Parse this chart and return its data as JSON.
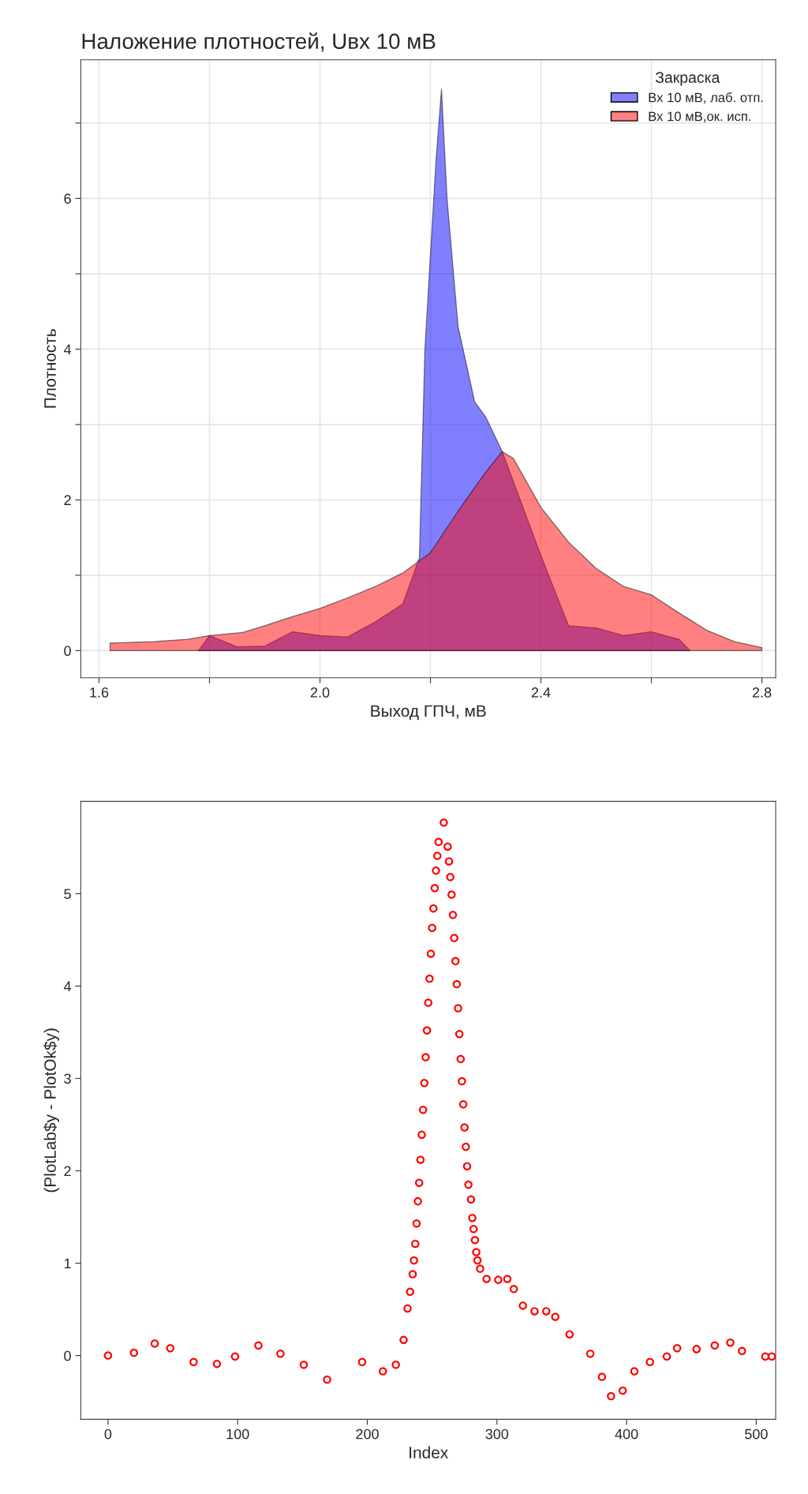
{
  "chart_data": [
    {
      "type": "area",
      "title": "Наложение плотностей, Uвх 10 мВ",
      "xlabel": "Выход ГПЧ, мВ",
      "ylabel": "Плотность",
      "legend_title": "Закраска",
      "legend": "top right",
      "grid": true,
      "xlim": [
        1.567,
        2.825
      ],
      "ylim": [
        -0.36,
        7.84
      ],
      "xticks": [
        1.6,
        {
          "value": 1.8,
          "label": null
        },
        {
          "value": 2.0,
          "label": "2.0"
        },
        {
          "value": 2.2,
          "label": null
        },
        2.4,
        {
          "value": 2.6,
          "label": null
        },
        2.8
      ],
      "yticks": [
        0,
        {
          "value": 1,
          "label": null
        },
        2,
        {
          "value": 3,
          "label": null
        },
        4,
        {
          "value": 5,
          "label": null
        },
        6,
        {
          "value": 7,
          "label": null
        }
      ],
      "series": [
        {
          "name": "Вх 10 мВ, лаб. отп.",
          "color": "#8080ff",
          "x": [
            1.78,
            1.8,
            1.85,
            1.9,
            1.95,
            2.0,
            2.05,
            2.1,
            2.15,
            2.18,
            2.19,
            2.21,
            2.22,
            2.23,
            2.25,
            2.28,
            2.3,
            2.33,
            2.4,
            2.45,
            2.5,
            2.55,
            2.6,
            2.65,
            2.67
          ],
          "values": [
            0,
            0.2,
            0.05,
            0.06,
            0.25,
            0.2,
            0.18,
            0.38,
            0.62,
            1.23,
            4.0,
            6.5,
            7.45,
            6.0,
            4.3,
            3.3,
            3.1,
            2.64,
            1.26,
            0.33,
            0.3,
            0.2,
            0.25,
            0.15,
            0
          ]
        },
        {
          "name": "Вх 10 мВ,ок. исп.",
          "color": "#ff8080",
          "x": [
            1.62,
            1.7,
            1.76,
            1.8,
            1.86,
            1.9,
            1.95,
            2.0,
            2.05,
            2.1,
            2.15,
            2.2,
            2.25,
            2.3,
            2.33,
            2.35,
            2.4,
            2.45,
            2.5,
            2.55,
            2.6,
            2.65,
            2.7,
            2.75,
            2.8
          ],
          "values": [
            0.1,
            0.12,
            0.15,
            0.2,
            0.24,
            0.33,
            0.45,
            0.56,
            0.7,
            0.85,
            1.03,
            1.3,
            1.85,
            2.37,
            2.64,
            2.55,
            1.9,
            1.44,
            1.09,
            0.85,
            0.74,
            0.5,
            0.27,
            0.12,
            0.04
          ]
        }
      ]
    },
    {
      "type": "scatter",
      "xlabel": "Index",
      "ylabel": "(PlotLab$y - PlotOk$y)",
      "marker": "circle",
      "xlim": [
        -21,
        515
      ],
      "ylim": [
        -0.69,
        6.0
      ],
      "xticks": [
        0,
        100,
        200,
        300,
        400,
        500
      ],
      "yticks": [
        0,
        1,
        2,
        3,
        4,
        5
      ],
      "series": [
        {
          "color": "#ff0000",
          "x": [
            0,
            20,
            36,
            48,
            66,
            84,
            98,
            116,
            133,
            151,
            169,
            196,
            212,
            222,
            228,
            231,
            233,
            235,
            236,
            237,
            238,
            239,
            240,
            241,
            242,
            243,
            244,
            245,
            246,
            247,
            248,
            249,
            250,
            251,
            252,
            253,
            254,
            255,
            259,
            262,
            263,
            264,
            265,
            266,
            267,
            268,
            269,
            270,
            271,
            272,
            273,
            274,
            275,
            276,
            277,
            278,
            280,
            281,
            282,
            283,
            284,
            285,
            287,
            292,
            301,
            308,
            313,
            320,
            329,
            338,
            345,
            356,
            372,
            381,
            388,
            397,
            406,
            418,
            431,
            439,
            454,
            468,
            480,
            489,
            507,
            512
          ],
          "values": [
            0,
            0.03,
            0.13,
            0.08,
            -0.07,
            -0.09,
            -0.01,
            0.11,
            0.02,
            -0.1,
            -0.26,
            -0.07,
            -0.17,
            -0.1,
            0.17,
            0.51,
            0.69,
            0.88,
            1.03,
            1.21,
            1.43,
            1.67,
            1.87,
            2.12,
            2.39,
            2.66,
            2.95,
            3.23,
            3.52,
            3.82,
            4.08,
            4.35,
            4.63,
            4.84,
            5.06,
            5.25,
            5.41,
            5.56,
            5.77,
            5.51,
            5.35,
            5.18,
            4.99,
            4.77,
            4.52,
            4.27,
            4.02,
            3.76,
            3.48,
            3.21,
            2.97,
            2.72,
            2.47,
            2.26,
            2.05,
            1.85,
            1.69,
            1.49,
            1.37,
            1.25,
            1.12,
            1.03,
            0.94,
            0.83,
            0.82,
            0.83,
            0.72,
            0.54,
            0.48,
            0.48,
            0.42,
            0.23,
            0.02,
            -0.23,
            -0.44,
            -0.38,
            -0.17,
            -0.07,
            -0.01,
            0.08,
            0.07,
            0.11,
            0.14,
            0.05,
            -0.01,
            -0.01
          ]
        }
      ]
    }
  ]
}
